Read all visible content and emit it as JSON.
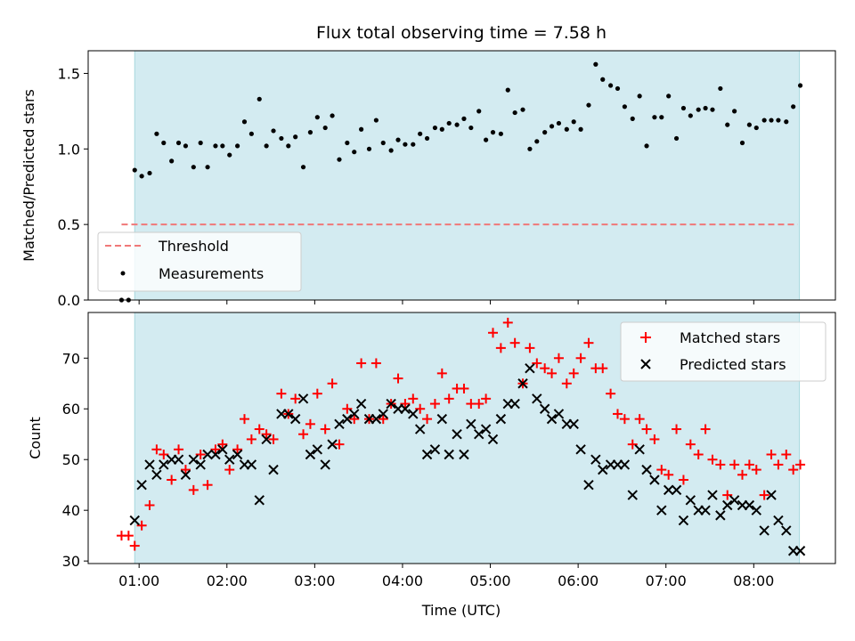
{
  "chart_data": [
    {
      "type": "scatter",
      "title": "Flux total observing time = 7.58 h",
      "xlabel": "",
      "ylabel": "Matched/Predicted stars",
      "ylim": [
        0,
        1.65
      ],
      "yticks": [
        "0.0",
        "0.5",
        "1.0",
        "1.5"
      ],
      "ytick_values": [
        0,
        0.5,
        1.0,
        1.5
      ],
      "xlim": [
        0.42,
        8.93
      ],
      "shaded_interval": [
        0.95,
        8.52
      ],
      "shade_color": "#d3ebf1",
      "legend_placement": "lower-left",
      "threshold": {
        "name": "Threshold",
        "value": 0.5,
        "x": [
          0.8,
          8.5
        ],
        "color": "#f07878"
      },
      "series": [
        {
          "name": "Measurements",
          "color": "#000000",
          "x": [
            0.8,
            0.88,
            0.95,
            1.03,
            1.12,
            1.2,
            1.28,
            1.37,
            1.45,
            1.53,
            1.62,
            1.7,
            1.78,
            1.87,
            1.95,
            2.03,
            2.12,
            2.2,
            2.28,
            2.37,
            2.45,
            2.53,
            2.62,
            2.7,
            2.78,
            2.87,
            2.95,
            3.03,
            3.12,
            3.2,
            3.28,
            3.37,
            3.45,
            3.53,
            3.62,
            3.7,
            3.78,
            3.87,
            3.95,
            4.03,
            4.12,
            4.2,
            4.28,
            4.37,
            4.45,
            4.53,
            4.62,
            4.7,
            4.78,
            4.87,
            4.95,
            5.03,
            5.12,
            5.2,
            5.28,
            5.37,
            5.45,
            5.53,
            5.62,
            5.7,
            5.78,
            5.87,
            5.95,
            6.03,
            6.12,
            6.2,
            6.28,
            6.37,
            6.45,
            6.53,
            6.62,
            6.7,
            6.78,
            6.87,
            6.95,
            7.03,
            7.12,
            7.2,
            7.28,
            7.37,
            7.45,
            7.53,
            7.62,
            7.7,
            7.78,
            7.87,
            7.95,
            8.03,
            8.12,
            8.2,
            8.28,
            8.37,
            8.45,
            8.53
          ],
          "y": [
            0.0,
            0.0,
            0.86,
            0.82,
            0.84,
            1.1,
            1.04,
            0.92,
            1.04,
            1.02,
            0.88,
            1.04,
            0.88,
            1.02,
            1.02,
            0.96,
            1.02,
            1.18,
            1.1,
            1.33,
            1.02,
            1.12,
            1.07,
            1.02,
            1.08,
            0.88,
            1.11,
            1.21,
            1.14,
            1.22,
            0.93,
            1.04,
            0.98,
            1.13,
            1.0,
            1.19,
            1.04,
            0.99,
            1.06,
            1.03,
            1.03,
            1.1,
            1.07,
            1.14,
            1.13,
            1.17,
            1.16,
            1.2,
            1.14,
            1.25,
            1.06,
            1.11,
            1.1,
            1.39,
            1.24,
            1.26,
            1.0,
            1.05,
            1.11,
            1.15,
            1.17,
            1.13,
            1.18,
            1.13,
            1.29,
            1.56,
            1.46,
            1.42,
            1.4,
            1.28,
            1.2,
            1.35,
            1.02,
            1.21,
            1.21,
            1.35,
            1.07,
            1.27,
            1.22,
            1.26,
            1.27,
            1.26,
            1.4,
            1.16,
            1.25,
            1.04,
            1.16,
            1.14,
            1.19,
            1.19,
            1.19,
            1.18,
            1.28,
            1.42
          ]
        }
      ]
    },
    {
      "type": "scatter",
      "title": "",
      "xlabel": "Time (UTC)",
      "ylabel": "Count",
      "ylim": [
        29.5,
        79
      ],
      "yticks": [
        "30",
        "40",
        "50",
        "60",
        "70"
      ],
      "ytick_values": [
        30,
        40,
        50,
        60,
        70
      ],
      "xlim": [
        0.42,
        8.93
      ],
      "xticks": [
        "01:00",
        "02:00",
        "03:00",
        "04:00",
        "05:00",
        "06:00",
        "07:00",
        "08:00"
      ],
      "xtick_values": [
        1,
        2,
        3,
        4,
        5,
        6,
        7,
        8
      ],
      "shaded_interval": [
        0.95,
        8.52
      ],
      "shade_color": "#d3ebf1",
      "legend_placement": "upper-right",
      "series": [
        {
          "name": "Matched stars",
          "marker": "plus",
          "color": "#ff0000",
          "x": [
            0.8,
            0.88,
            0.95,
            1.03,
            1.12,
            1.2,
            1.28,
            1.37,
            1.45,
            1.53,
            1.62,
            1.7,
            1.78,
            1.87,
            1.95,
            2.03,
            2.12,
            2.2,
            2.28,
            2.37,
            2.45,
            2.53,
            2.62,
            2.7,
            2.78,
            2.87,
            2.95,
            3.03,
            3.12,
            3.2,
            3.28,
            3.37,
            3.45,
            3.53,
            3.62,
            3.7,
            3.78,
            3.87,
            3.95,
            4.03,
            4.12,
            4.2,
            4.28,
            4.37,
            4.45,
            4.53,
            4.62,
            4.7,
            4.78,
            4.87,
            4.95,
            5.03,
            5.12,
            5.2,
            5.28,
            5.37,
            5.45,
            5.53,
            5.62,
            5.7,
            5.78,
            5.87,
            5.95,
            6.03,
            6.12,
            6.2,
            6.28,
            6.37,
            6.45,
            6.53,
            6.62,
            6.7,
            6.78,
            6.87,
            6.95,
            7.03,
            7.12,
            7.2,
            7.28,
            7.37,
            7.45,
            7.53,
            7.62,
            7.7,
            7.78,
            7.87,
            7.95,
            8.03,
            8.12,
            8.2,
            8.28,
            8.37,
            8.45,
            8.53
          ],
          "y": [
            35,
            35,
            33,
            37,
            41,
            52,
            51,
            46,
            52,
            48,
            44,
            51,
            45,
            52,
            53,
            48,
            52,
            58,
            54,
            56,
            55,
            54,
            63,
            59,
            62,
            55,
            57,
            63,
            56,
            65,
            53,
            60,
            58,
            69,
            58,
            69,
            58,
            61,
            66,
            61,
            62,
            60,
            58,
            61,
            67,
            62,
            64,
            64,
            61,
            61,
            62,
            75,
            72,
            77,
            73,
            65,
            72,
            69,
            68,
            67,
            70,
            65,
            67,
            70,
            73,
            68,
            68,
            63,
            59,
            58,
            53,
            58,
            56,
            54,
            48,
            47,
            56,
            46,
            53,
            51,
            56,
            50,
            49,
            43,
            49,
            47,
            49,
            48,
            43,
            51,
            49,
            51,
            48,
            49
          ]
        },
        {
          "name": "Predicted stars",
          "marker": "x",
          "color": "#000000",
          "x": [
            0.95,
            1.03,
            1.12,
            1.2,
            1.28,
            1.37,
            1.45,
            1.53,
            1.62,
            1.7,
            1.78,
            1.87,
            1.95,
            2.03,
            2.12,
            2.2,
            2.28,
            2.37,
            2.45,
            2.53,
            2.62,
            2.7,
            2.78,
            2.87,
            2.95,
            3.03,
            3.12,
            3.2,
            3.28,
            3.37,
            3.45,
            3.53,
            3.62,
            3.7,
            3.78,
            3.87,
            3.95,
            4.03,
            4.12,
            4.2,
            4.28,
            4.37,
            4.45,
            4.53,
            4.62,
            4.7,
            4.78,
            4.87,
            4.95,
            5.03,
            5.12,
            5.2,
            5.28,
            5.37,
            5.45,
            5.53,
            5.62,
            5.7,
            5.78,
            5.87,
            5.95,
            6.03,
            6.12,
            6.2,
            6.28,
            6.37,
            6.45,
            6.53,
            6.62,
            6.7,
            6.78,
            6.87,
            6.95,
            7.03,
            7.12,
            7.2,
            7.28,
            7.37,
            7.45,
            7.53,
            7.62,
            7.7,
            7.78,
            7.87,
            7.95,
            8.03,
            8.12,
            8.2,
            8.28,
            8.37,
            8.45,
            8.53
          ],
          "y": [
            38,
            45,
            49,
            47,
            49,
            50,
            50,
            47,
            50,
            49,
            51,
            51,
            52,
            50,
            51,
            49,
            49,
            42,
            54,
            48,
            59,
            59,
            58,
            62,
            51,
            52,
            49,
            53,
            57,
            58,
            59,
            61,
            58,
            58,
            59,
            61,
            60,
            60,
            59,
            56,
            51,
            52,
            58,
            51,
            55,
            51,
            57,
            55,
            56,
            54,
            58,
            61,
            61,
            65,
            68,
            62,
            60,
            58,
            59,
            57,
            57,
            52,
            45,
            50,
            48,
            49,
            49,
            49,
            43,
            52,
            48,
            46,
            40,
            44,
            44,
            38,
            42,
            40,
            40,
            43,
            39,
            41,
            42,
            41,
            41,
            40,
            36,
            43,
            38,
            36,
            32,
            32
          ]
        }
      ]
    }
  ]
}
